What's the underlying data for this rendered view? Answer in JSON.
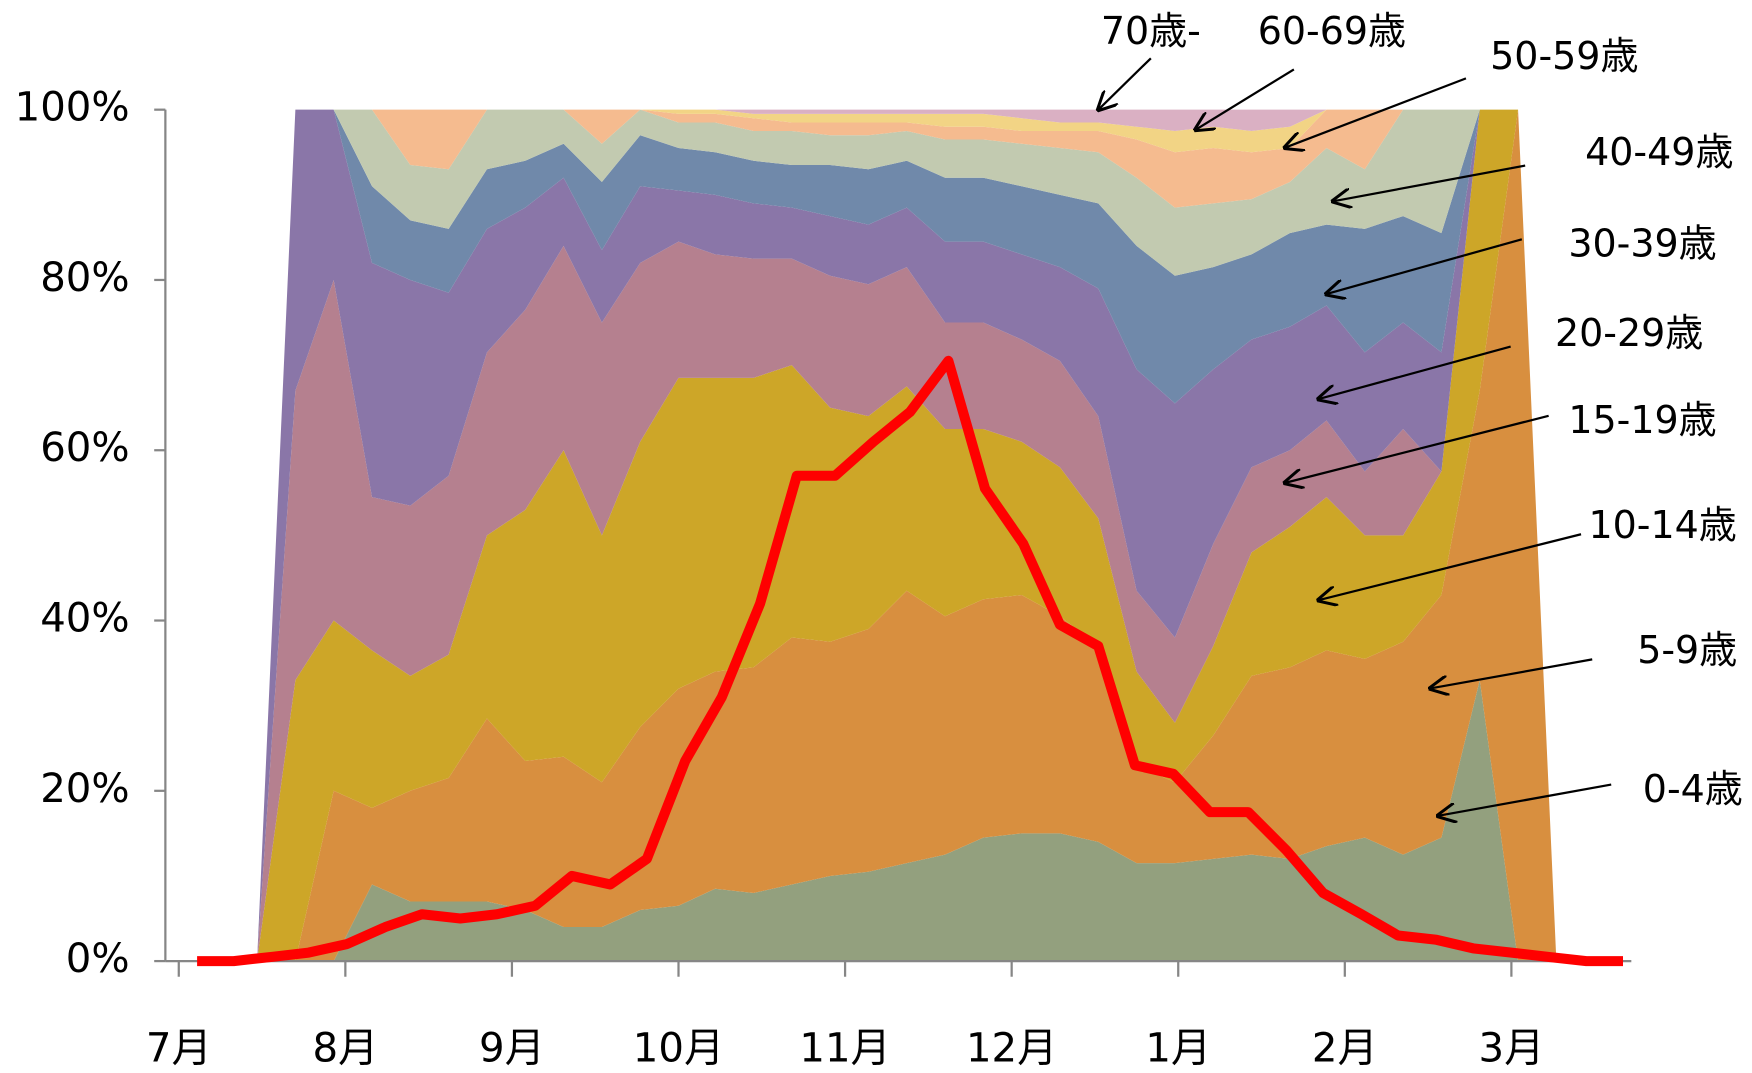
{
  "chart_data": {
    "type": "area",
    "stacked": true,
    "x": [
      0.47,
      0.7,
      0.93,
      1.16,
      1.39,
      1.62,
      1.85,
      2.08,
      2.31,
      2.54,
      2.77,
      3.0,
      3.22,
      3.45,
      3.68,
      3.91,
      4.14,
      4.37,
      4.6,
      4.83,
      5.06,
      5.29,
      5.52,
      5.75,
      5.98,
      6.21,
      6.44,
      6.67,
      6.89,
      7.12,
      7.35,
      7.58,
      7.81,
      8.04,
      8.27
    ],
    "series": [
      {
        "name": "0-4歳",
        "color": "#93a07e",
        "values": [
          0,
          0,
          0,
          9,
          7,
          7,
          7,
          6,
          4,
          4,
          6,
          6.5,
          8.5,
          8,
          9,
          10,
          10.5,
          11.5,
          12.5,
          14.5,
          15,
          15,
          14,
          11.5,
          11.5,
          12,
          12.5,
          12,
          13.5,
          14.5,
          12.5,
          14.5,
          33,
          0,
          0
        ]
      },
      {
        "name": "5-9歳",
        "color": "#d88f3f",
        "values": [
          0,
          0,
          20,
          9,
          13,
          14.5,
          21.5,
          17.5,
          20,
          17,
          21.5,
          25.5,
          25.5,
          26.5,
          29,
          27.5,
          28.5,
          32,
          28,
          28,
          28,
          25.5,
          23,
          11.5,
          9.5,
          14.5,
          21,
          22.5,
          23,
          21,
          25,
          28.5,
          34,
          100,
          0
        ]
      },
      {
        "name": "10-14歳",
        "color": "#cda628",
        "values": [
          0,
          33,
          20,
          18.5,
          13.5,
          14.5,
          21.5,
          29.5,
          36,
          29,
          33.5,
          36.5,
          34.5,
          34,
          32,
          27.5,
          25,
          24,
          22,
          20,
          18,
          17.5,
          15,
          11,
          7,
          10.5,
          14.5,
          16.5,
          18,
          14.5,
          12.5,
          14.5,
          33,
          0,
          0
        ]
      },
      {
        "name": "15-19歳",
        "color": "#b5808f",
        "values": [
          0,
          34,
          40,
          18,
          20,
          21,
          21.5,
          23.5,
          24,
          25,
          21,
          16,
          14.5,
          14,
          12.5,
          15.5,
          15.5,
          14,
          12.5,
          12.5,
          12,
          12.5,
          12,
          9.5,
          10,
          12,
          10,
          9,
          9,
          7.5,
          12.5,
          0,
          0,
          0,
          0
        ]
      },
      {
        "name": "20-29歳",
        "color": "#8a76a8",
        "values": [
          0,
          33,
          20,
          27.5,
          26.5,
          21.5,
          14.5,
          12,
          8,
          8.5,
          9,
          6,
          7,
          6.5,
          6,
          7,
          7,
          7,
          9.5,
          9.5,
          10,
          11,
          15,
          26,
          27.5,
          20.5,
          15,
          14.5,
          13.5,
          14,
          12.5,
          14,
          0,
          0,
          0
        ]
      },
      {
        "name": "30-39歳",
        "color": "#7089aa",
        "values": [
          0,
          0,
          0,
          9,
          7,
          7.5,
          7,
          5.5,
          4,
          8,
          6,
          5,
          5,
          5,
          5,
          6,
          6.5,
          5.5,
          7.5,
          7.5,
          8,
          8.5,
          10,
          14.5,
          15,
          12,
          10,
          11,
          9.5,
          14.5,
          12.5,
          14,
          0,
          0,
          0
        ]
      },
      {
        "name": "40-49歳",
        "color": "#c2cab0",
        "values": [
          0,
          0,
          0,
          9,
          6.5,
          7,
          7,
          6,
          4,
          4.5,
          3,
          3,
          3.5,
          3.5,
          4,
          3.5,
          4,
          3.5,
          4.5,
          4.5,
          5,
          5.5,
          6,
          8,
          8,
          7.5,
          6.5,
          6,
          9,
          7,
          12.5,
          14.5,
          0,
          0,
          0
        ]
      },
      {
        "name": "50-59歳",
        "color": "#f5bb8f",
        "values": [
          0,
          0,
          0,
          0,
          6.5,
          7,
          0,
          0,
          0,
          4,
          0,
          1,
          1,
          1.5,
          1,
          1.5,
          1.5,
          1,
          1.5,
          1.5,
          1.5,
          2,
          2.5,
          4.5,
          6.5,
          6.5,
          5.5,
          4,
          4.5,
          7,
          0,
          0,
          0,
          0,
          0
        ]
      },
      {
        "name": "60-69歳",
        "color": "#f2d485",
        "values": [
          0,
          0,
          0,
          0,
          0,
          0,
          0,
          0,
          0,
          0,
          0,
          0.5,
          0.5,
          0.5,
          1,
          1,
          1,
          1,
          1.5,
          1.5,
          1.5,
          1,
          1,
          1.5,
          2.5,
          2.5,
          2.5,
          2.5,
          0,
          0,
          0,
          0,
          0,
          0,
          0
        ]
      },
      {
        "name": "70歳-",
        "color": "#dab0c3",
        "values": [
          0,
          0,
          0,
          0,
          0,
          0,
          0,
          0,
          0,
          0,
          0,
          0,
          0,
          0.5,
          0.5,
          0.5,
          0.5,
          0.5,
          0.5,
          0.5,
          1,
          1.5,
          1.5,
          2,
          2.5,
          2,
          2.5,
          2,
          0,
          0,
          0,
          0,
          0,
          0,
          0
        ]
      }
    ],
    "line": {
      "color": "#ff0000",
      "x": [
        0.11,
        0.33,
        0.56,
        0.78,
        1.01,
        1.24,
        1.46,
        1.69,
        1.91,
        2.14,
        2.36,
        2.59,
        2.81,
        3.04,
        3.26,
        3.49,
        3.71,
        3.94,
        4.17,
        4.39,
        4.62,
        4.84,
        5.07,
        5.29,
        5.52,
        5.74,
        5.97,
        6.19,
        6.42,
        6.65,
        6.87,
        7.1,
        7.32,
        7.55,
        7.77,
        8.0,
        8.22,
        8.45,
        8.67
      ],
      "values": [
        0,
        0,
        0.5,
        1,
        2,
        4,
        5.5,
        5,
        5.5,
        6.5,
        10,
        9,
        12,
        23.5,
        31,
        42,
        57,
        57,
        61,
        64.5,
        70.5,
        55.5,
        49,
        39.5,
        37,
        23,
        22,
        17.5,
        17.5,
        13,
        8,
        5.5,
        3,
        2.5,
        1.5,
        1,
        0.5,
        0,
        0
      ]
    },
    "xlim": [
      0,
      8.72
    ],
    "xticks": [
      {
        "value": 0,
        "label": "7月"
      },
      {
        "value": 1,
        "label": "8月"
      },
      {
        "value": 2,
        "label": "9月"
      },
      {
        "value": 3,
        "label": "10月"
      },
      {
        "value": 4,
        "label": "11月"
      },
      {
        "value": 5,
        "label": "12月"
      },
      {
        "value": 6,
        "label": "1月"
      },
      {
        "value": 7,
        "label": "2月"
      },
      {
        "value": 8,
        "label": "3月"
      }
    ],
    "ylim": [
      0,
      100
    ],
    "yticks": [
      {
        "value": 0,
        "label": "0%"
      },
      {
        "value": 20,
        "label": "20%"
      },
      {
        "value": 40,
        "label": "40%"
      },
      {
        "value": 60,
        "label": "60%"
      },
      {
        "value": 80,
        "label": "80%"
      },
      {
        "value": 100,
        "label": "100%"
      }
    ]
  }
}
